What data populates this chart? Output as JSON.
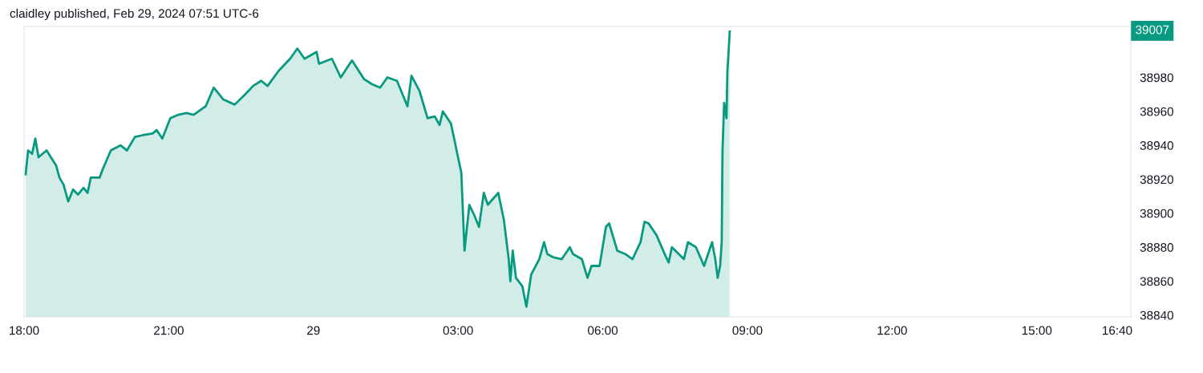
{
  "chart_data": {
    "type": "area",
    "title": "claidley published, Feb 29, 2024 07:51 UTC-6",
    "series": [
      {
        "color": "#089981",
        "x": [
          "2024-02-28T18:02",
          "2024-02-28T18:05",
          "2024-02-28T18:10",
          "2024-02-28T18:14",
          "2024-02-28T18:18",
          "2024-02-28T18:28",
          "2024-02-28T18:40",
          "2024-02-28T18:44",
          "2024-02-28T18:49",
          "2024-02-28T18:55",
          "2024-02-28T19:01",
          "2024-02-28T19:07",
          "2024-02-28T19:14",
          "2024-02-28T19:19",
          "2024-02-28T19:23",
          "2024-02-28T19:34",
          "2024-02-28T19:38",
          "2024-02-28T19:48",
          "2024-02-28T20:00",
          "2024-02-28T20:08",
          "2024-02-28T20:18",
          "2024-02-28T20:28",
          "2024-02-28T20:40",
          "2024-02-28T20:45",
          "2024-02-28T20:52",
          "2024-02-28T21:02",
          "2024-02-28T21:12",
          "2024-02-28T21:22",
          "2024-02-28T21:31",
          "2024-02-28T21:46",
          "2024-02-28T21:56",
          "2024-02-28T22:08",
          "2024-02-28T22:22",
          "2024-02-28T22:35",
          "2024-02-28T22:45",
          "2024-02-28T22:55",
          "2024-02-28T23:03",
          "2024-02-28T23:17",
          "2024-02-28T23:31",
          "2024-02-28T23:40",
          "2024-02-28T23:49",
          "2024-02-29T00:04",
          "2024-02-29T00:07",
          "2024-02-29T00:23",
          "2024-02-29T00:34",
          "2024-02-29T00:48",
          "2024-02-29T01:03",
          "2024-02-29T01:13",
          "2024-02-29T01:23",
          "2024-02-29T01:32",
          "2024-02-29T01:44",
          "2024-02-29T01:57",
          "2024-02-29T02:02",
          "2024-02-29T02:12",
          "2024-02-29T02:22",
          "2024-02-29T02:31",
          "2024-02-29T02:37",
          "2024-02-29T02:41",
          "2024-02-29T02:51",
          "2024-02-29T02:56",
          "2024-02-29T02:59",
          "2024-02-29T03:04",
          "2024-02-29T03:08",
          "2024-02-29T03:14",
          "2024-02-29T03:20",
          "2024-02-29T03:26",
          "2024-02-29T03:32",
          "2024-02-29T03:37",
          "2024-02-29T03:50",
          "2024-02-29T03:57",
          "2024-02-29T04:03",
          "2024-02-29T04:05",
          "2024-02-29T04:08",
          "2024-02-29T04:12",
          "2024-02-29T04:20",
          "2024-02-29T04:25",
          "2024-02-29T04:31",
          "2024-02-29T04:41",
          "2024-02-29T04:47",
          "2024-02-29T04:51",
          "2024-02-29T04:59",
          "2024-02-29T05:09",
          "2024-02-29T05:19",
          "2024-02-29T05:23",
          "2024-02-29T05:34",
          "2024-02-29T05:41",
          "2024-02-29T05:46",
          "2024-02-29T05:56",
          "2024-02-29T06:04",
          "2024-02-29T06:08",
          "2024-02-29T06:18",
          "2024-02-29T06:28",
          "2024-02-29T06:37",
          "2024-02-29T06:47",
          "2024-02-29T06:52",
          "2024-02-29T06:57",
          "2024-02-29T07:07",
          "2024-02-29T07:17",
          "2024-02-29T07:22",
          "2024-02-29T07:26",
          "2024-02-29T07:41",
          "2024-02-29T07:46",
          "2024-02-29T07:56",
          "2024-02-29T08:06",
          "2024-02-29T08:16",
          "2024-02-29T08:20",
          "2024-02-29T08:23",
          "2024-02-29T08:26",
          "2024-02-29T08:28",
          "2024-02-29T08:29",
          "2024-02-29T08:31",
          "2024-02-29T08:34",
          "2024-02-29T08:35",
          "2024-02-29T08:38"
        ],
        "values": [
          38923,
          38937,
          38935,
          38944,
          38933,
          38937,
          38928,
          38921,
          38917,
          38907,
          38914,
          38911,
          38915,
          38912,
          38921,
          38921,
          38926,
          38937,
          38940,
          38937,
          38945,
          38946,
          38947,
          38949,
          38944,
          38956,
          38958,
          38959,
          38958,
          38963,
          38974,
          38967,
          38964,
          38970,
          38975,
          38978,
          38975,
          38984,
          38991,
          38997,
          38991,
          38995,
          38988,
          38991,
          38980,
          38990,
          38979,
          38976,
          38974,
          38980,
          38978,
          38963,
          38981,
          38972,
          38956,
          38957,
          38952,
          38960,
          38953,
          38942,
          38935,
          38924,
          38878,
          38905,
          38899,
          38892,
          38912,
          38905,
          38912,
          38896,
          38873,
          38860,
          38878,
          38862,
          38857,
          38845,
          38864,
          38873,
          38883,
          38876,
          38874,
          38873,
          38880,
          38876,
          38873,
          38862,
          38869,
          38869,
          38892,
          38894,
          38878,
          38876,
          38873,
          38883,
          38895,
          38894,
          38887,
          38876,
          38871,
          38880,
          38873,
          38883,
          38880,
          38869,
          38883,
          38873,
          38862,
          38869,
          38883,
          38937,
          38965,
          38956,
          38983,
          39007
        ]
      }
    ],
    "xlim": [
      "2024-02-28T18:00",
      "2024-02-29T16:57"
    ],
    "xticks": [
      {
        "value": "2024-02-28T18:00",
        "label": "18:00"
      },
      {
        "value": "2024-02-28T21:00",
        "label": "21:00"
      },
      {
        "value": "2024-02-29T00:00",
        "label": "29"
      },
      {
        "value": "2024-02-29T03:00",
        "label": "03:00"
      },
      {
        "value": "2024-02-29T06:00",
        "label": "06:00"
      },
      {
        "value": "2024-02-29T09:00",
        "label": "09:00"
      },
      {
        "value": "2024-02-29T12:00",
        "label": "12:00"
      },
      {
        "value": "2024-02-29T15:00",
        "label": "15:00"
      },
      {
        "value": "2024-02-29T16:40",
        "label": "16:40"
      }
    ],
    "ylim": [
      38839,
      39010
    ],
    "yticks": [
      38840,
      38860,
      38880,
      38900,
      38920,
      38940,
      38960,
      38980
    ],
    "annotations": [
      "39007"
    ],
    "grid": false,
    "legend": false
  }
}
